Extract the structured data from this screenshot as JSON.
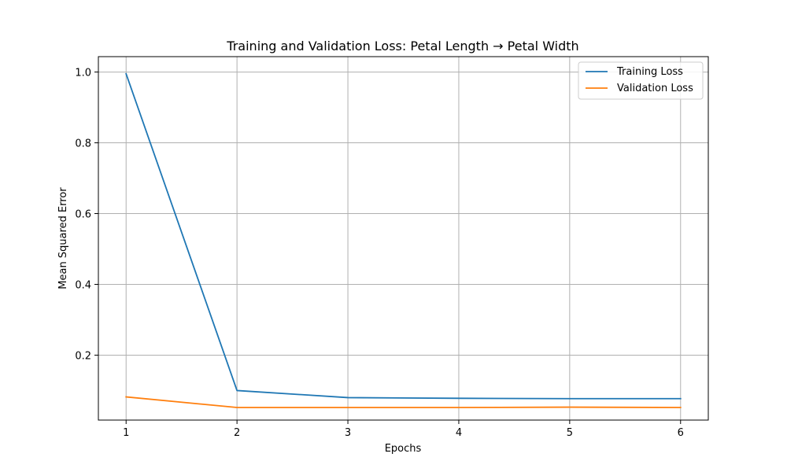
{
  "chart_data": {
    "type": "line",
    "title": "Training and Validation Loss: Petal Length → Petal Width",
    "xlabel": "Epochs",
    "ylabel": "Mean Squared Error",
    "x": [
      1,
      2,
      3,
      4,
      5,
      6
    ],
    "series": [
      {
        "name": "Training Loss",
        "color": "#1f77b4",
        "values": [
          0.995,
          0.1,
          0.08,
          0.078,
          0.077,
          0.077
        ]
      },
      {
        "name": "Validation Loss",
        "color": "#ff7f0e",
        "values": [
          0.082,
          0.052,
          0.052,
          0.052,
          0.053,
          0.052
        ]
      }
    ],
    "xlim": [
      0.75,
      6.25
    ],
    "ylim": [
      0.0165,
      1.0435
    ],
    "xticks": [
      1,
      2,
      3,
      4,
      5,
      6
    ],
    "xtick_labels": [
      "1",
      "2",
      "3",
      "4",
      "5",
      "6"
    ],
    "yticks": [
      0.2,
      0.4,
      0.6,
      0.8,
      1.0
    ],
    "ytick_labels": [
      "0.2",
      "0.4",
      "0.6",
      "0.8",
      "1.0"
    ],
    "grid": true,
    "legend_position": "top-right"
  }
}
